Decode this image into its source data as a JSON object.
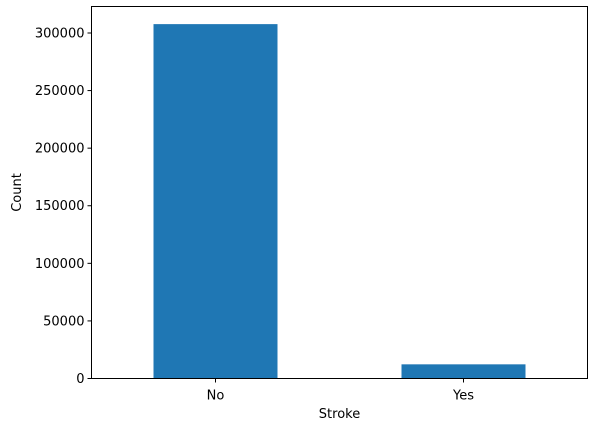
{
  "chart_data": {
    "type": "bar",
    "title": "",
    "xlabel": "Stroke",
    "ylabel": "Count",
    "categories": [
      "No",
      "Yes"
    ],
    "values": [
      307700,
      12300
    ],
    "ylim": [
      0,
      323000
    ],
    "yticks": [
      0,
      50000,
      100000,
      150000,
      200000,
      250000,
      300000
    ],
    "ytick_labels": [
      "0",
      "50000",
      "100000",
      "150000",
      "200000",
      "250000",
      "300000"
    ],
    "grid": false,
    "legend": "none",
    "bar_color": "#1f77b4"
  }
}
